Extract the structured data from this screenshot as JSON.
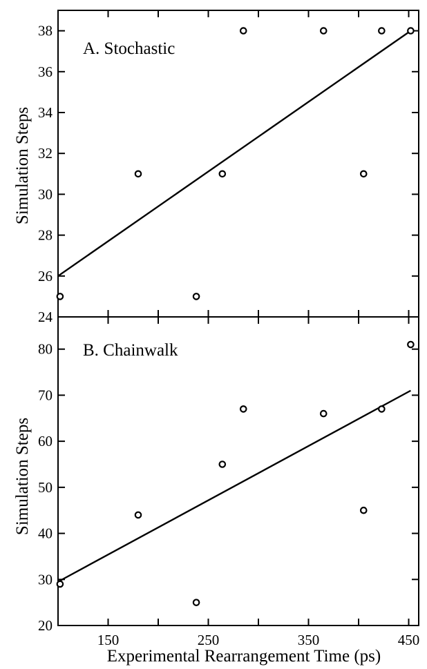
{
  "chart_data": [
    {
      "type": "scatter",
      "title": "A. Stochastic",
      "xlabel": "Experimental Rearrangement Time (ps)",
      "ylabel": "Simulation Steps",
      "xlim": [
        100,
        460
      ],
      "ylim": [
        24,
        39
      ],
      "xticks": [
        100,
        150,
        200,
        250,
        300,
        350,
        400,
        450
      ],
      "xtick_labels": [],
      "yticks": [
        24,
        26,
        28,
        30,
        32,
        34,
        36,
        38
      ],
      "ytick_labels": [
        "24",
        "26",
        "28",
        "30",
        "32",
        "34",
        "36",
        "38"
      ],
      "grid": false,
      "points": [
        {
          "x": 102,
          "y": 25
        },
        {
          "x": 180,
          "y": 31
        },
        {
          "x": 238,
          "y": 25
        },
        {
          "x": 264,
          "y": 31
        },
        {
          "x": 285,
          "y": 38
        },
        {
          "x": 365,
          "y": 38
        },
        {
          "x": 405,
          "y": 31
        },
        {
          "x": 423,
          "y": 38
        },
        {
          "x": 452,
          "y": 38
        }
      ],
      "fit_line": {
        "x": [
          100,
          452
        ],
        "y": [
          26,
          38
        ]
      }
    },
    {
      "type": "scatter",
      "title": "B. Chainwalk",
      "xlabel": "Experimental Rearrangement Time (ps)",
      "ylabel": "Simulation Steps",
      "xlim": [
        100,
        460
      ],
      "ylim": [
        20,
        87
      ],
      "xticks": [
        100,
        150,
        200,
        250,
        300,
        350,
        400,
        450
      ],
      "xtick_labels": [
        "",
        "150",
        "",
        "250",
        "",
        "350",
        "",
        "450"
      ],
      "yticks": [
        20,
        30,
        40,
        50,
        60,
        70,
        80
      ],
      "ytick_labels": [
        "20",
        "30",
        "40",
        "50",
        "60",
        "70",
        "80"
      ],
      "grid": false,
      "points": [
        {
          "x": 102,
          "y": 29
        },
        {
          "x": 180,
          "y": 44
        },
        {
          "x": 238,
          "y": 25
        },
        {
          "x": 264,
          "y": 55
        },
        {
          "x": 285,
          "y": 67
        },
        {
          "x": 365,
          "y": 66
        },
        {
          "x": 405,
          "y": 45
        },
        {
          "x": 423,
          "y": 67
        },
        {
          "x": 452,
          "y": 81
        }
      ],
      "fit_line": {
        "x": [
          100,
          452
        ],
        "y": [
          29.5,
          71
        ]
      }
    }
  ]
}
